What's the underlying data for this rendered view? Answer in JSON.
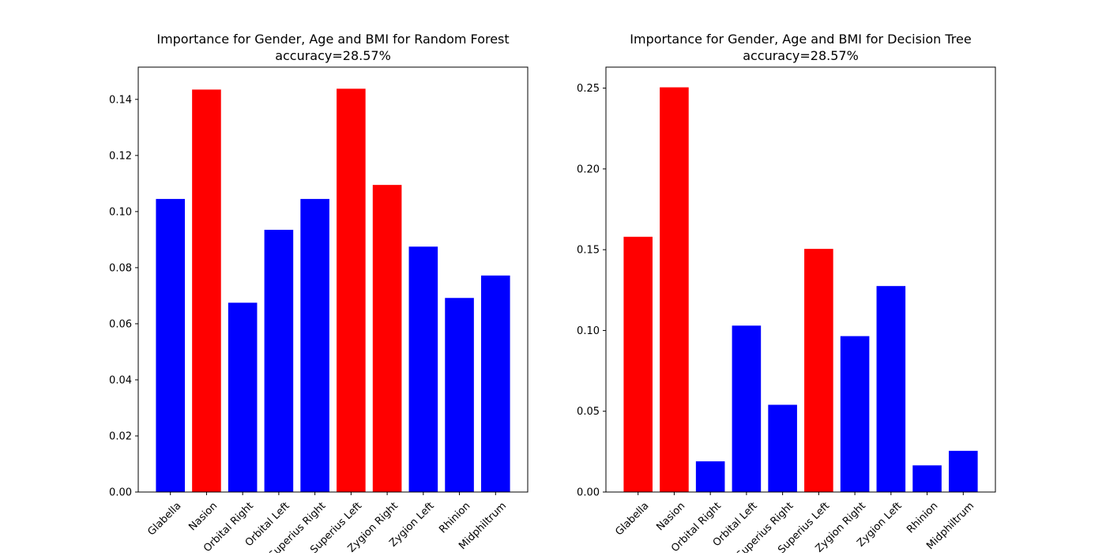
{
  "chart_data": [
    {
      "type": "bar",
      "title": "Importance for Gender, Age and BMI for Random Forest",
      "subtitle": "accuracy=28.57%",
      "categories": [
        "Glabella",
        "Nasion",
        "Orbital Right",
        "Orbital Left",
        "Superius Right",
        "Superius Left",
        "Zygion Right",
        "Zygion Left",
        "Rhinion",
        "Midphiltrum"
      ],
      "values": [
        0.1045,
        0.1435,
        0.0675,
        0.0935,
        0.1045,
        0.1438,
        0.1095,
        0.0875,
        0.0692,
        0.0772
      ],
      "bar_colors": [
        "#0000ff",
        "#ff0000",
        "#0000ff",
        "#0000ff",
        "#0000ff",
        "#ff0000",
        "#ff0000",
        "#0000ff",
        "#0000ff",
        "#0000ff"
      ],
      "ylim": [
        0,
        0.1515
      ],
      "yticks": [
        "0.00",
        "0.02",
        "0.04",
        "0.06",
        "0.08",
        "0.10",
        "0.12",
        "0.14"
      ],
      "xlabel": "",
      "ylabel": "",
      "grid": false
    },
    {
      "type": "bar",
      "title": "Importance for Gender, Age and BMI for Decision Tree",
      "subtitle": "accuracy=28.57%",
      "categories": [
        "Glabella",
        "Nasion",
        "Orbital Right",
        "Orbital Left",
        "Superius Right",
        "Superius Left",
        "Zygion Right",
        "Zygion Left",
        "Rhinion",
        "Midphiltrum"
      ],
      "values": [
        0.158,
        0.2505,
        0.019,
        0.103,
        0.054,
        0.1505,
        0.0965,
        0.1275,
        0.0165,
        0.0255
      ],
      "bar_colors": [
        "#ff0000",
        "#ff0000",
        "#0000ff",
        "#0000ff",
        "#0000ff",
        "#ff0000",
        "#0000ff",
        "#0000ff",
        "#0000ff",
        "#0000ff"
      ],
      "ylim": [
        0,
        0.263
      ],
      "yticks": [
        "0.00",
        "0.05",
        "0.10",
        "0.15",
        "0.20",
        "0.25"
      ],
      "xlabel": "",
      "ylabel": "",
      "grid": false
    }
  ]
}
